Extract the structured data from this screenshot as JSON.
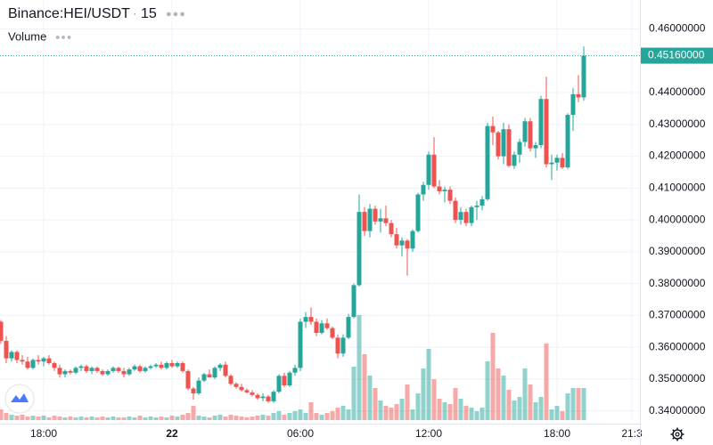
{
  "chart_data": {
    "type": "candlestick",
    "title": "Binance:HEI/USDT",
    "interval": "15",
    "volume_label": "Volume",
    "up_color": "#26a69a",
    "down_color": "#ef5350",
    "grid": true,
    "ylim": [
      0.3371,
      0.4691
    ],
    "yticks": [
      {
        "value": 0.46,
        "label": "0.46000000"
      },
      {
        "value": 0.44,
        "label": "0.44000000"
      },
      {
        "value": 0.43,
        "label": "0.43000000"
      },
      {
        "value": 0.42,
        "label": "0.42000000"
      },
      {
        "value": 0.41,
        "label": "0.41000000"
      },
      {
        "value": 0.4,
        "label": "0.40000000"
      },
      {
        "value": 0.39,
        "label": "0.39000000"
      },
      {
        "value": 0.38,
        "label": "0.38000000"
      },
      {
        "value": 0.37,
        "label": "0.37000000"
      },
      {
        "value": 0.36,
        "label": "0.36000000"
      },
      {
        "value": 0.35,
        "label": "0.35000000"
      },
      {
        "value": 0.34,
        "label": "0.34000000"
      }
    ],
    "last_price": {
      "value": 0.4516,
      "label": "0.45160000"
    },
    "categories": [
      null,
      null,
      null,
      null,
      null,
      null,
      null,
      null,
      "18:00",
      null,
      null,
      null,
      null,
      null,
      null,
      null,
      null,
      null,
      null,
      null,
      null,
      null,
      null,
      null,
      null,
      null,
      null,
      null,
      null,
      null,
      null,
      null,
      "22",
      null,
      null,
      null,
      null,
      null,
      null,
      null,
      null,
      null,
      null,
      null,
      null,
      null,
      null,
      null,
      null,
      null,
      null,
      null,
      null,
      null,
      null,
      null,
      "06:00",
      null,
      null,
      null,
      null,
      null,
      null,
      null,
      null,
      null,
      null,
      null,
      null,
      null,
      null,
      null,
      null,
      null,
      null,
      null,
      null,
      null,
      null,
      null,
      "12:00",
      null,
      null,
      null,
      null,
      null,
      null,
      null,
      null,
      null,
      null,
      null,
      null,
      null,
      null,
      null,
      null,
      null,
      null,
      null,
      null,
      null,
      null,
      null,
      "18:00",
      null,
      null,
      null,
      null,
      null,
      null,
      null,
      null,
      null,
      null,
      null,
      null,
      null,
      "21:3",
      null
    ],
    "open": [
      0.368,
      0.362,
      0.3565,
      0.3585,
      0.356,
      0.3555,
      0.3535,
      0.356,
      0.3555,
      0.3565,
      0.355,
      0.3535,
      0.3515,
      0.3525,
      0.352,
      0.3535,
      0.354,
      0.3525,
      0.3535,
      0.3525,
      0.3515,
      0.3525,
      0.3535,
      0.3525,
      0.3515,
      0.353,
      0.354,
      0.3525,
      0.3535,
      0.354,
      0.3545,
      0.3535,
      0.355,
      0.354,
      0.355,
      0.3525,
      0.347,
      0.3455,
      0.3495,
      0.3515,
      0.3505,
      0.3535,
      0.3545,
      0.351,
      0.3485,
      0.3475,
      0.3465,
      0.3458,
      0.345,
      0.344,
      0.3445,
      0.343,
      0.346,
      0.351,
      0.348,
      0.352,
      0.3535,
      0.368,
      0.3695,
      0.368,
      0.3645,
      0.3675,
      0.366,
      0.363,
      0.358,
      0.363,
      0.3695,
      0.3795,
      0.4025,
      0.3965,
      0.4035,
      0.3995,
      0.4005,
      0.399,
      0.3955,
      0.392,
      0.3935,
      0.391,
      0.3965,
      0.408,
      0.411,
      0.4205,
      0.4105,
      0.409,
      0.4095,
      0.406,
      0.4,
      0.4025,
      0.399,
      0.404,
      0.4045,
      0.4065,
      0.4295,
      0.4275,
      0.42,
      0.4285,
      0.417,
      0.4205,
      0.4245,
      0.431,
      0.4225,
      0.4235,
      0.438,
      0.4175,
      0.418,
      0.4195,
      0.4165,
      0.433,
      0.4395,
      0.4385,
      null,
      null,
      null,
      null,
      null,
      null,
      null,
      null,
      null,
      null
    ],
    "high": [
      0.3685,
      0.3635,
      0.359,
      0.359,
      0.3575,
      0.357,
      0.3565,
      0.3575,
      0.357,
      0.3575,
      0.3555,
      0.3545,
      0.353,
      0.353,
      0.354,
      0.3545,
      0.3545,
      0.354,
      0.354,
      0.353,
      0.353,
      0.354,
      0.354,
      0.3535,
      0.3535,
      0.3545,
      0.3545,
      0.354,
      0.3545,
      0.355,
      0.3555,
      0.3555,
      0.356,
      0.3555,
      0.3555,
      0.353,
      0.3475,
      0.3505,
      0.352,
      0.353,
      0.354,
      0.355,
      0.3555,
      0.3515,
      0.349,
      0.3485,
      0.347,
      0.3465,
      0.3455,
      0.3455,
      0.345,
      0.3465,
      0.3515,
      0.352,
      0.3525,
      0.3545,
      0.369,
      0.371,
      0.3725,
      0.369,
      0.3685,
      0.369,
      0.3665,
      0.364,
      0.364,
      0.3705,
      0.38,
      0.408,
      0.404,
      0.405,
      0.4045,
      0.4035,
      0.4045,
      0.4,
      0.3975,
      0.3945,
      0.394,
      0.397,
      0.4085,
      0.412,
      0.4215,
      0.426,
      0.4125,
      0.4105,
      0.4105,
      0.407,
      0.404,
      0.4035,
      0.4045,
      0.406,
      0.4075,
      0.4305,
      0.4325,
      0.428,
      0.4305,
      0.43,
      0.4215,
      0.4255,
      0.432,
      0.432,
      0.4245,
      0.439,
      0.445,
      0.4205,
      0.4205,
      0.421,
      0.4335,
      0.4415,
      0.4455,
      0.4545,
      null,
      null,
      null,
      null,
      null,
      null,
      null,
      null,
      null,
      null
    ],
    "low": [
      0.361,
      0.355,
      0.3555,
      0.355,
      0.3545,
      0.353,
      0.353,
      0.3545,
      0.354,
      0.3545,
      0.3525,
      0.3505,
      0.3505,
      0.3515,
      0.3515,
      0.3525,
      0.352,
      0.3515,
      0.352,
      0.351,
      0.351,
      0.352,
      0.352,
      0.3505,
      0.351,
      0.3525,
      0.352,
      0.352,
      0.353,
      0.3535,
      0.353,
      0.353,
      0.3535,
      0.3535,
      0.352,
      0.3465,
      0.3435,
      0.345,
      0.349,
      0.3505,
      0.35,
      0.3525,
      0.3505,
      0.348,
      0.347,
      0.346,
      0.3455,
      0.3445,
      0.3435,
      0.343,
      0.3425,
      0.3425,
      0.3455,
      0.3475,
      0.3475,
      0.351,
      0.3525,
      0.366,
      0.367,
      0.3635,
      0.364,
      0.3655,
      0.3625,
      0.3565,
      0.357,
      0.3625,
      0.369,
      0.379,
      0.395,
      0.3945,
      0.3985,
      0.396,
      0.398,
      0.3945,
      0.391,
      0.3885,
      0.3825,
      0.39,
      0.396,
      0.406,
      0.4095,
      0.41,
      0.408,
      0.4055,
      0.405,
      0.399,
      0.3985,
      0.398,
      0.398,
      0.4,
      0.403,
      0.406,
      0.4235,
      0.419,
      0.4175,
      0.4165,
      0.416,
      0.418,
      0.423,
      0.4215,
      0.4195,
      0.4225,
      0.4165,
      0.4125,
      0.4155,
      0.416,
      0.416,
      0.428,
      0.437,
      0.4375,
      null,
      null,
      null,
      null,
      null,
      null,
      null,
      null,
      null,
      null
    ],
    "close": [
      0.362,
      0.3565,
      0.3585,
      0.356,
      0.3555,
      0.3535,
      0.356,
      0.3555,
      0.3565,
      0.355,
      0.3535,
      0.3515,
      0.3525,
      0.352,
      0.3535,
      0.354,
      0.3525,
      0.3535,
      0.3525,
      0.3515,
      0.3525,
      0.3535,
      0.3525,
      0.3515,
      0.353,
      0.354,
      0.3525,
      0.3535,
      0.354,
      0.3545,
      0.3535,
      0.355,
      0.354,
      0.355,
      0.3525,
      0.347,
      0.3455,
      0.3495,
      0.3515,
      0.3505,
      0.3535,
      0.3545,
      0.351,
      0.3485,
      0.3475,
      0.3465,
      0.3458,
      0.345,
      0.344,
      0.3445,
      0.343,
      0.346,
      0.351,
      0.348,
      0.352,
      0.3535,
      0.368,
      0.3695,
      0.368,
      0.3645,
      0.3675,
      0.366,
      0.363,
      0.358,
      0.363,
      0.3695,
      0.3795,
      0.4025,
      0.3965,
      0.4035,
      0.3995,
      0.4005,
      0.399,
      0.3955,
      0.392,
      0.3935,
      0.391,
      0.3965,
      0.408,
      0.411,
      0.4205,
      0.4105,
      0.409,
      0.4095,
      0.406,
      0.4,
      0.4025,
      0.399,
      0.404,
      0.4045,
      0.4065,
      0.4295,
      0.4275,
      0.42,
      0.4285,
      0.417,
      0.4205,
      0.4245,
      0.431,
      0.4225,
      0.4235,
      0.438,
      0.4175,
      0.418,
      0.4195,
      0.4165,
      0.433,
      0.4395,
      0.4385,
      0.4516,
      null,
      null,
      null,
      null,
      null,
      null,
      null,
      null,
      null,
      null
    ],
    "volume": [
      12,
      8,
      6,
      5,
      6,
      4,
      5,
      4,
      5,
      3,
      5,
      4,
      3,
      4,
      3,
      4,
      3,
      4,
      3,
      4,
      3,
      4,
      3,
      3,
      4,
      3,
      5,
      3,
      4,
      3,
      4,
      3,
      5,
      4,
      6,
      8,
      16,
      5,
      4,
      3,
      5,
      6,
      4,
      6,
      5,
      4,
      3,
      4,
      5,
      6,
      5,
      8,
      10,
      6,
      8,
      10,
      12,
      8,
      20,
      8,
      6,
      8,
      10,
      14,
      16,
      12,
      60,
      118,
      74,
      50,
      36,
      22,
      16,
      14,
      18,
      24,
      40,
      12,
      30,
      58,
      80,
      46,
      24,
      20,
      18,
      36,
      24,
      16,
      14,
      10,
      14,
      66,
      98,
      58,
      50,
      34,
      22,
      26,
      58,
      40,
      20,
      26,
      86,
      12,
      16,
      10,
      30,
      36,
      36,
      36,
      null,
      null,
      null,
      null,
      null,
      null,
      null,
      null,
      null,
      null
    ]
  }
}
